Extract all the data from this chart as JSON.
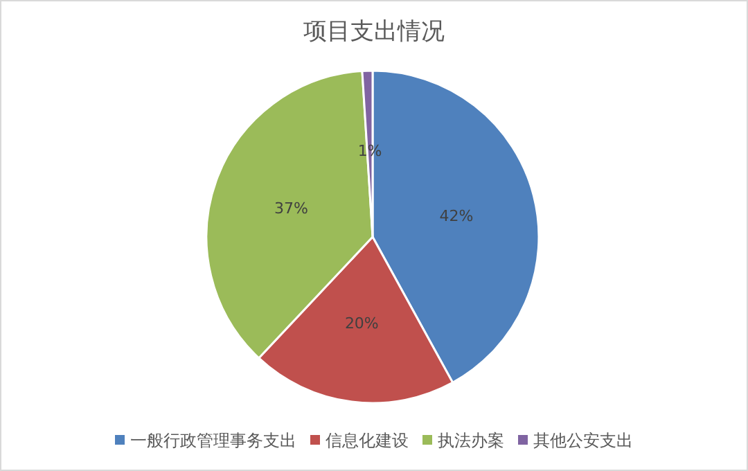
{
  "chart_data": {
    "type": "pie",
    "title": "项目支出情况",
    "categories": [
      "一般行政管理事务支出",
      "信息化建设",
      "执法办案",
      "其他公安支出"
    ],
    "values": [
      42,
      20,
      37,
      1
    ],
    "colors": [
      "#4f81bd",
      "#c0504d",
      "#9bbb59",
      "#8064a2"
    ],
    "value_labels": [
      "42%",
      "20%",
      "37%",
      "1%"
    ],
    "legend": "bottom"
  }
}
